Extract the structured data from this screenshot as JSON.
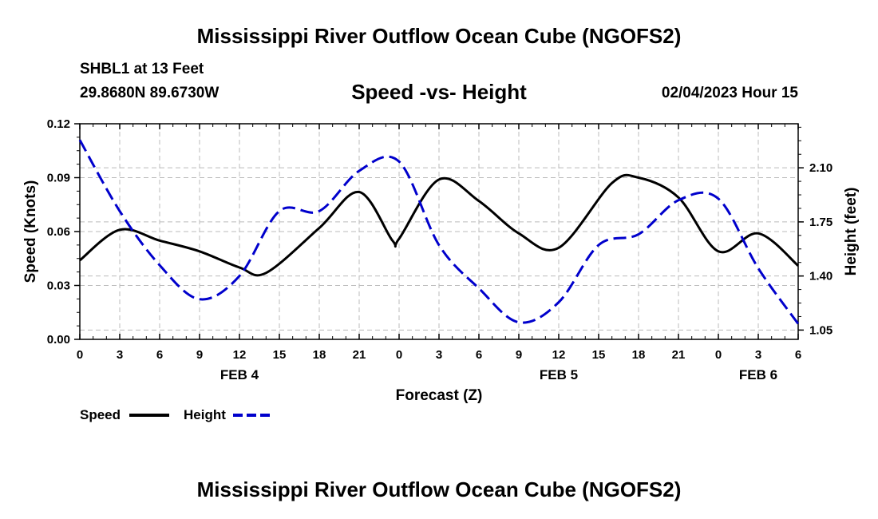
{
  "header": {
    "title": "Mississippi River Outflow Ocean Cube (NGOFS2)",
    "station": "SHBL1 at 13 Feet",
    "coords": "29.8680N  89.6730W",
    "chart_title": "Speed -vs- Height",
    "datetime": "02/04/2023 Hour 15"
  },
  "footer": {
    "title": "Mississippi River Outflow Ocean Cube (NGOFS2)"
  },
  "legend": {
    "speed_label": "Speed",
    "height_label": "Height"
  },
  "colors": {
    "speed": "#000000",
    "height": "#0000cc",
    "grid": "#bbbbbb"
  },
  "chart_data": {
    "type": "line",
    "title": "Speed -vs- Height",
    "xlabel": "Forecast (Z)",
    "ylabel": "Speed (Knots)",
    "y2label": "Height (feet)",
    "xlim": [
      0,
      54
    ],
    "ylim": [
      0,
      0.12
    ],
    "y2lim": [
      0.99,
      2.385
    ],
    "x_ticks": [
      0,
      3,
      6,
      9,
      12,
      15,
      18,
      21,
      24,
      27,
      30,
      33,
      36,
      39,
      42,
      45,
      48,
      51,
      54
    ],
    "x_tick_labels": [
      "0",
      "3",
      "6",
      "9",
      "12",
      "15",
      "18",
      "21",
      "0",
      "3",
      "6",
      "9",
      "12",
      "15",
      "18",
      "21",
      "0",
      "3",
      "6"
    ],
    "y_ticks": [
      0,
      0.03,
      0.06,
      0.09,
      0.12
    ],
    "y_tick_labels": [
      "0.00",
      "0.03",
      "0.06",
      "0.09",
      "0.12"
    ],
    "y2_ticks": [
      1.05,
      1.4,
      1.75,
      2.1
    ],
    "y2_tick_labels": [
      "1.05",
      "1.40",
      "1.75",
      "2.10"
    ],
    "date_labels": [
      {
        "x": 12,
        "label": "FEB 4"
      },
      {
        "x": 36,
        "label": "FEB 5"
      },
      {
        "x": 51,
        "label": "FEB 6"
      }
    ],
    "grid": true,
    "legend_position": "bottom-left",
    "series": [
      {
        "name": "Speed",
        "axis": "left",
        "style": "solid",
        "x": [
          0,
          3,
          6,
          9,
          12,
          14,
          18,
          21,
          23.5,
          24,
          27,
          30,
          33,
          36,
          40,
          42,
          45,
          48,
          51,
          54
        ],
        "values": [
          0.044,
          0.061,
          0.055,
          0.049,
          0.04,
          0.037,
          0.062,
          0.082,
          0.055,
          0.056,
          0.089,
          0.077,
          0.059,
          0.051,
          0.087,
          0.09,
          0.079,
          0.049,
          0.059,
          0.041
        ]
      },
      {
        "name": "Height",
        "axis": "right",
        "style": "dashed",
        "x": [
          0,
          3,
          6,
          9,
          12,
          15,
          18,
          21,
          24,
          27,
          30,
          33,
          36,
          39,
          42,
          45,
          48,
          51,
          54
        ],
        "values": [
          2.28,
          1.82,
          1.47,
          1.25,
          1.4,
          1.82,
          1.82,
          2.08,
          2.14,
          1.6,
          1.32,
          1.1,
          1.23,
          1.6,
          1.67,
          1.89,
          1.9,
          1.45,
          1.09
        ]
      }
    ]
  }
}
